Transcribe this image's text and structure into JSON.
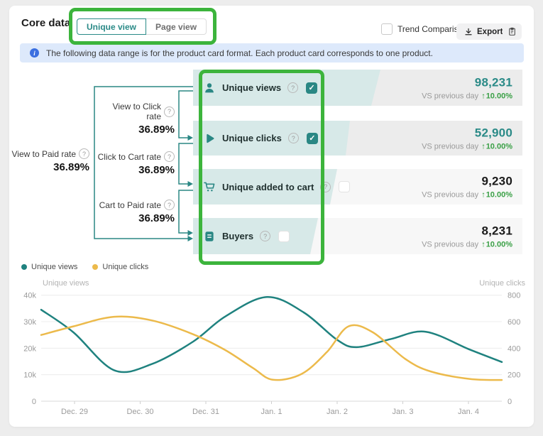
{
  "header": {
    "title": "Core data",
    "tabs": [
      {
        "label": "Unique view",
        "active": true
      },
      {
        "label": "Page view",
        "active": false
      }
    ],
    "trend_comparison_label": "Trend Comparison",
    "export_label": "Export"
  },
  "banner": {
    "text": "The following data range is for the product card format. Each product card corresponds to one product."
  },
  "funnel": {
    "overall_rate": {
      "label": "View to Paid rate",
      "value": "36.89%"
    },
    "step_rates": [
      {
        "label": "View to Click rate",
        "value": "36.89%"
      },
      {
        "label": "Click to Cart rate",
        "value": "36.89%"
      },
      {
        "label": "Cart to Paid rate",
        "value": "36.89%"
      }
    ],
    "compare_label": "VS previous day",
    "rows": [
      {
        "label": "Unique views",
        "icon": "person-icon",
        "value": "98,231",
        "delta": "10.00%",
        "checked": true,
        "value_color": "#2a8a87"
      },
      {
        "label": "Unique clicks",
        "icon": "play-icon",
        "value": "52,900",
        "delta": "10.00%",
        "checked": true,
        "value_color": "#2a8a87"
      },
      {
        "label": "Unique added to cart",
        "icon": "cart-icon",
        "value": "9,230",
        "delta": "10.00%",
        "checked": false,
        "value_color": "#1a1a1a"
      },
      {
        "label": "Buyers",
        "icon": "receipt-icon",
        "value": "8,231",
        "delta": "10.00%",
        "checked": false,
        "value_color": "#1a1a1a"
      }
    ]
  },
  "legend": [
    {
      "label": "Unique views",
      "color": "#1f827f"
    },
    {
      "label": "Unique clicks",
      "color": "#ecba4b"
    }
  ],
  "chart_data": {
    "type": "line",
    "left_axis": {
      "title": "Unique views",
      "ticks": [
        "0",
        "10k",
        "20k",
        "30k",
        "40k"
      ],
      "range": [
        0,
        40000
      ]
    },
    "right_axis": {
      "title": "Unique clicks",
      "ticks": [
        "0",
        "200",
        "400",
        "600",
        "800"
      ],
      "range": [
        0,
        800
      ]
    },
    "x_ticks": [
      "Dec. 29",
      "Dec. 30",
      "Dec. 31",
      "Jan. 1",
      "Jan. 2",
      "Jan. 3",
      "Jan. 4"
    ],
    "grid": true,
    "legend_position": "top-left",
    "series": [
      {
        "name": "Unique views",
        "axis": "left",
        "color": "#1f827f",
        "points": [
          [
            0,
            34500
          ],
          [
            0.07,
            26000
          ],
          [
            0.158,
            11700
          ],
          [
            0.24,
            14000
          ],
          [
            0.33,
            22500
          ],
          [
            0.4,
            32000
          ],
          [
            0.49,
            39300
          ],
          [
            0.57,
            33500
          ],
          [
            0.642,
            23200
          ],
          [
            0.685,
            20400
          ],
          [
            0.76,
            23500
          ],
          [
            0.835,
            26200
          ],
          [
            0.93,
            19500
          ],
          [
            1,
            14800
          ]
        ]
      },
      {
        "name": "Unique clicks",
        "axis": "right",
        "color": "#ecba4b",
        "points": [
          [
            0,
            500
          ],
          [
            0.07,
            565
          ],
          [
            0.158,
            637
          ],
          [
            0.24,
            610
          ],
          [
            0.33,
            505
          ],
          [
            0.4,
            385
          ],
          [
            0.46,
            250
          ],
          [
            0.503,
            162
          ],
          [
            0.565,
            205
          ],
          [
            0.62,
            370
          ],
          [
            0.667,
            565
          ],
          [
            0.72,
            520
          ],
          [
            0.79,
            320
          ],
          [
            0.845,
            225
          ],
          [
            0.93,
            168
          ],
          [
            1,
            160
          ]
        ]
      }
    ]
  },
  "colors": {
    "accent_teal": "#2a8784",
    "funnel_fill": "#d7e9e8",
    "row_bg_selected": "#ececec",
    "row_bg_unselected": "#f7f7f7",
    "delta_green": "#3aa046",
    "annotation_green": "#3cb43c",
    "banner_blue_bg": "#dde9fb",
    "series_yellow": "#ecba4b"
  }
}
